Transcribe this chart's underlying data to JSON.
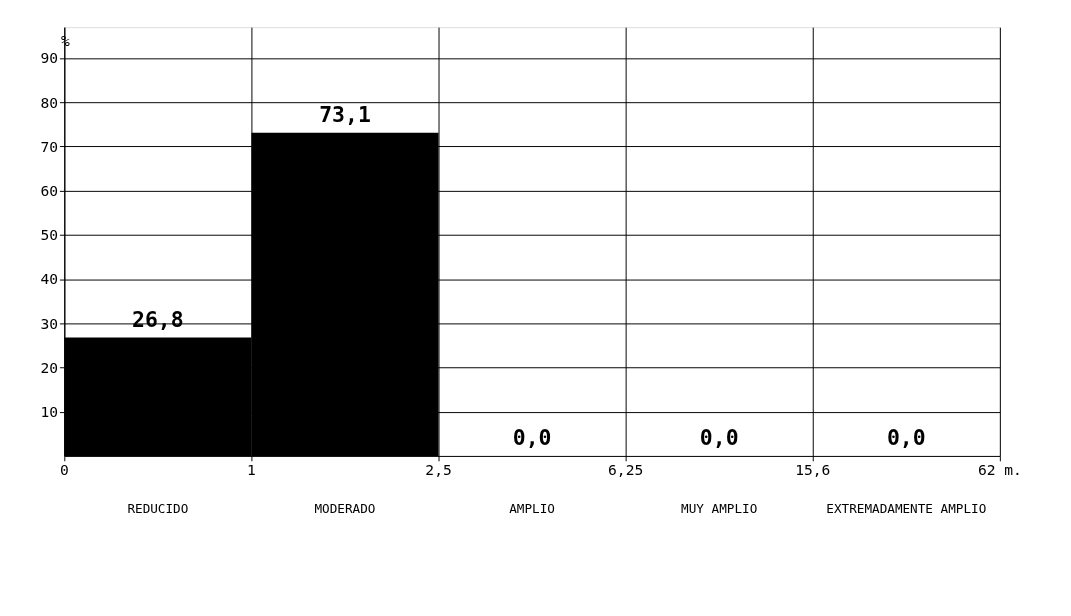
{
  "chart_data": {
    "type": "bar",
    "ylabel": "%",
    "categories": [
      "REDUCIDO",
      "MODERADO",
      "AMPLIO",
      "MUY AMPLIO",
      "EXTREMADAMENTE AMPLIO"
    ],
    "values": [
      26.8,
      73.1,
      0.0,
      0.0,
      0.0
    ],
    "value_labels": [
      "26,8",
      "73,1",
      "0,0",
      "0,0",
      "0,0"
    ],
    "color": "#000000",
    "ylim": [
      0,
      97
    ],
    "yticks": [
      10,
      20,
      30,
      40,
      50,
      60,
      70,
      80,
      90
    ],
    "grid": true,
    "annotations": [
      "0",
      "1",
      "2,5",
      "6,25",
      "15,6",
      "62 m."
    ]
  }
}
